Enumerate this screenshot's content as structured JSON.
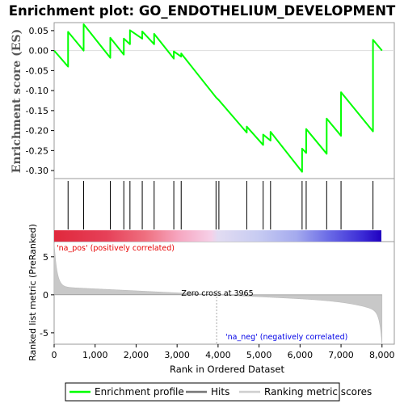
{
  "chart_data": {
    "type": "line",
    "title": "Enrichment plot: GO_ENDOTHELIUM_DEVELOPMENT",
    "xlabel": "Rank in Ordered Dataset",
    "ylabel_top": "Enrichment score (ES)",
    "ylabel_bottom": "Ranked list metric (PreRanked)",
    "xlim": [
      0,
      8300
    ],
    "x_ticks": [
      "0",
      "1,000",
      "2,000",
      "3,000",
      "4,000",
      "5,000",
      "6,000",
      "7,000",
      "8,000"
    ],
    "x_tick_values": [
      0,
      1000,
      2000,
      3000,
      4000,
      5000,
      6000,
      7000,
      8000
    ],
    "es_ylim": [
      -0.32,
      0.07
    ],
    "es_ticks": [
      "0.05",
      "0.00",
      "-0.05",
      "-0.10",
      "-0.15",
      "-0.20",
      "-0.25",
      "-0.30"
    ],
    "es_tick_values": [
      0.05,
      0.0,
      -0.05,
      -0.1,
      -0.15,
      -0.2,
      -0.25,
      -0.3
    ],
    "metric_ylim": [
      -6.5,
      7
    ],
    "metric_ticks": [
      "5",
      "0",
      "-5"
    ],
    "metric_tick_values": [
      5,
      0,
      -5
    ],
    "hits": [
      340,
      720,
      1370,
      1700,
      1850,
      2150,
      2440,
      2920,
      3100,
      3950,
      4020,
      4700,
      5100,
      5280,
      6050,
      6150,
      6650,
      7000,
      7780
    ],
    "series": [
      {
        "name": "Enrichment profile",
        "color": "#00ff00",
        "x": [
          0,
          340,
          340,
          720,
          720,
          1370,
          1370,
          1700,
          1700,
          1850,
          1850,
          2150,
          2150,
          2440,
          2440,
          2920,
          2920,
          3100,
          3100,
          3950,
          3950,
          4020,
          4020,
          4700,
          4700,
          5100,
          5100,
          5280,
          5280,
          6050,
          6050,
          6150,
          6150,
          6650,
          6650,
          7000,
          7000,
          7780,
          7780,
          8000
        ],
        "values": [
          0.0,
          -0.04,
          0.047,
          0.0,
          0.066,
          -0.018,
          0.032,
          -0.01,
          0.03,
          0.016,
          0.051,
          0.03,
          0.048,
          0.016,
          0.042,
          -0.02,
          -0.002,
          -0.015,
          -0.007,
          -0.117,
          -0.117,
          -0.124,
          -0.124,
          -0.205,
          -0.19,
          -0.236,
          -0.21,
          -0.225,
          -0.203,
          -0.303,
          -0.245,
          -0.256,
          -0.196,
          -0.258,
          -0.17,
          -0.213,
          -0.104,
          -0.202,
          0.027,
          0.0
        ]
      }
    ],
    "zero_cross_label": "Zero cross at 3965",
    "zero_cross": 3965,
    "pos_label": "'na_pos' (positively correlated)",
    "neg_label": "'na_neg' (negatively correlated)",
    "legend": [
      "Enrichment profile",
      "Hits",
      "Ranking metric scores"
    ],
    "colors": {
      "profile": "#00ff00",
      "hits": "#000000",
      "metric": "#c8c8c8",
      "pos_text": "#e60000",
      "neg_text": "#0000e6"
    }
  }
}
